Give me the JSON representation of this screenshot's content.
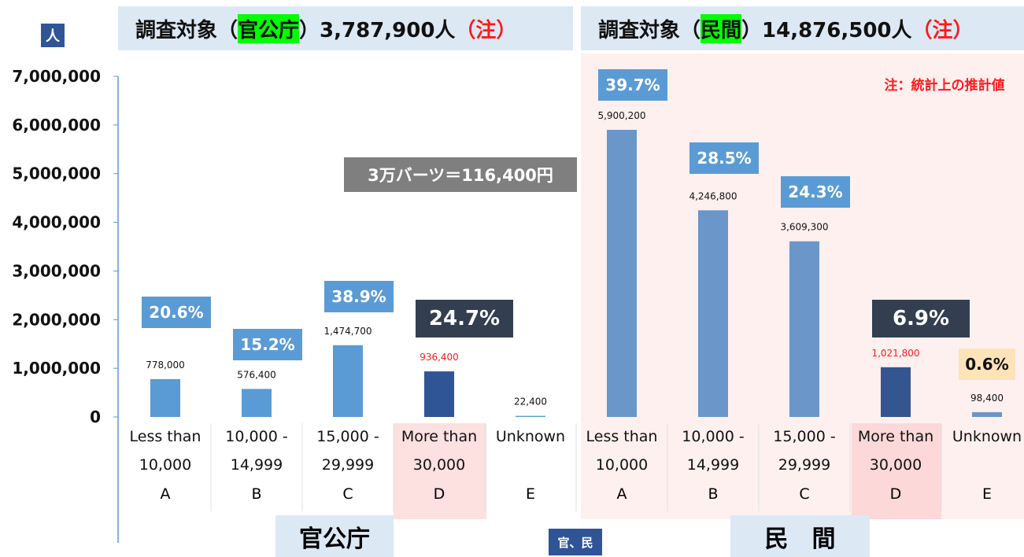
{
  "chart_data": {
    "type": "bar",
    "header_left": {
      "prefix": "調査対象（",
      "highlight": "官公庁",
      "total": "）3,787,900人",
      "note": "（注）"
    },
    "header_right": {
      "prefix": "調査対象（",
      "highlight": "民間",
      "total": "）14,876,500人",
      "note": "（注）"
    },
    "ylabel": "人",
    "note": "注：統計上の推計値",
    "exchange_note": "3万バーツ＝116,400円",
    "group_divider_label": "官、民",
    "groups": [
      "官公庁",
      "民　間"
    ],
    "categories": [
      "Less than\n10,000",
      "10,000 -\n14,999",
      "15,000 -\n29,999",
      "More than\n30,000",
      "Unknown",
      "Less than\n10,000",
      "10,000 -\n14,999",
      "15,000 -\n29,999",
      "More than\n30,000",
      "Unknown"
    ],
    "letters": [
      "A",
      "B",
      "C",
      "D",
      "E",
      "A",
      "B",
      "C",
      "D",
      "E"
    ],
    "values": [
      778000,
      576400,
      1474700,
      936400,
      22400,
      5900200,
      4246800,
      3609300,
      1021800,
      98400
    ],
    "value_labels": [
      "778,000",
      "576,400",
      "1,474,700",
      "936,400",
      "22,400",
      "5,900,200",
      "4,246,800",
      "3,609,300",
      "1,021,800",
      "98,400"
    ],
    "colors": [
      "#5b9bd5",
      "#5b9bd5",
      "#5b9bd5",
      "#2f5597",
      "#5b9bd5",
      "#6a96c9",
      "#6a96c9",
      "#6a96c9",
      "#34558f",
      "#6a96c9"
    ],
    "share_labels": [
      "20.6%",
      "15.2%",
      "38.9%",
      "24.7%",
      null,
      "39.7%",
      "28.5%",
      "24.3%",
      "6.9%",
      "0.6%"
    ],
    "share_box_colors": [
      "#5b9bd5",
      "#5b9bd5",
      "#5b9bd5",
      "#333f50",
      null,
      "#5b9bd5",
      "#5b9bd5",
      "#5b9bd5",
      "#333f50",
      "#fde3b8"
    ],
    "ylim": [
      0,
      7000000
    ],
    "yticks": [
      0,
      {
        "value": 1000000,
        "label": "1,000,000"
      },
      {
        "value": 2000000,
        "label": "2,000,000"
      },
      {
        "value": 3000000,
        "label": "3,000,000"
      },
      {
        "value": 4000000,
        "label": "4,000,000"
      },
      {
        "value": 5000000,
        "label": "5,000,000"
      },
      {
        "value": 6000000,
        "label": "6,000,000"
      },
      {
        "value": 7000000,
        "label": "7,000,000"
      }
    ]
  }
}
